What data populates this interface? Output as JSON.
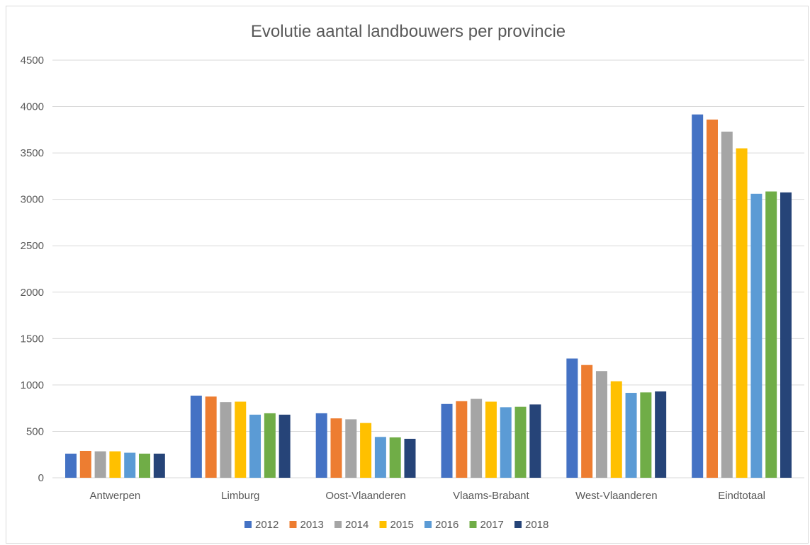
{
  "chart_data": {
    "type": "bar",
    "title": "Evolutie aantal landbouwers per provincie",
    "xlabel": "",
    "ylabel": "",
    "ylim": [
      0,
      4500
    ],
    "yticks": [
      0,
      500,
      1000,
      1500,
      2000,
      2500,
      3000,
      3500,
      4000,
      4500
    ],
    "grid": true,
    "legend_position": "bottom",
    "categories": [
      "Antwerpen",
      "Limburg",
      "Oost-Vlaanderen",
      "Vlaams-Brabant",
      "West-Vlaanderen",
      "Eindtotaal"
    ],
    "series": [
      {
        "name": "2012",
        "color": "#4472c4",
        "values": [
          260,
          885,
          695,
          795,
          1285,
          3915
        ]
      },
      {
        "name": "2013",
        "color": "#ed7d31",
        "values": [
          290,
          875,
          640,
          825,
          1215,
          3860
        ]
      },
      {
        "name": "2014",
        "color": "#a5a5a5",
        "values": [
          285,
          815,
          630,
          850,
          1150,
          3730
        ]
      },
      {
        "name": "2015",
        "color": "#ffc000",
        "values": [
          285,
          820,
          590,
          820,
          1040,
          3550
        ]
      },
      {
        "name": "2016",
        "color": "#5b9bd5",
        "values": [
          270,
          680,
          440,
          760,
          915,
          3060
        ]
      },
      {
        "name": "2017",
        "color": "#70ad47",
        "values": [
          260,
          695,
          435,
          765,
          920,
          3085
        ]
      },
      {
        "name": "2018",
        "color": "#264478",
        "values": [
          260,
          680,
          420,
          790,
          930,
          3075
        ]
      }
    ]
  },
  "colors": {
    "gridline": "#d9d9d9",
    "text": "#595959"
  }
}
